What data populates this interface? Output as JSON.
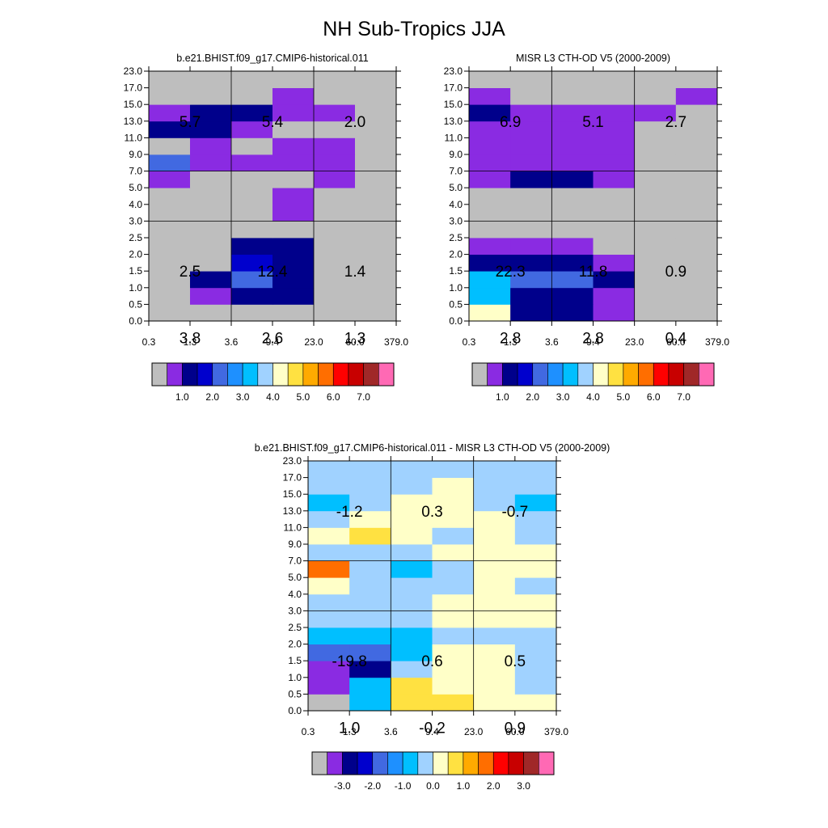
{
  "title": "NH Sub-Tropics JJA",
  "palette": [
    "#bebebe",
    "#8a2be2",
    "#00008b",
    "#0000cd",
    "#4169e1",
    "#1e90ff",
    "#00bfff",
    "#a0d2ff",
    "#ffffc8",
    "#ffe141",
    "#ffaa00",
    "#ff6e00",
    "#ff0000",
    "#c80000",
    "#a02828",
    "#ff69b4"
  ],
  "chart_data": [
    {
      "type": "heatmap",
      "title": "b.e21.BHIST.f09_g17.CMIP6-historical.011",
      "x_edges": [
        "0.3",
        "1.3",
        "3.6",
        "9.4",
        "23.0",
        "60.0",
        "379.0"
      ],
      "y_edges": [
        "0.0",
        "0.5",
        "1.0",
        "1.5",
        "2.0",
        "2.5",
        "3.0",
        "4.0",
        "5.0",
        "7.0",
        "9.0",
        "11.0",
        "13.0",
        "15.0",
        "17.0",
        "23.0"
      ],
      "cells_bottom_to_top": [
        [
          0,
          0,
          0,
          0,
          0,
          0
        ],
        [
          0,
          1,
          2,
          2,
          0,
          0
        ],
        [
          0,
          2,
          4,
          2,
          0,
          0
        ],
        [
          0,
          0,
          3,
          2,
          0,
          0
        ],
        [
          0,
          0,
          2,
          2,
          0,
          0
        ],
        [
          0,
          0,
          0,
          0,
          0,
          0
        ],
        [
          0,
          0,
          0,
          1,
          0,
          0
        ],
        [
          0,
          0,
          0,
          1,
          0,
          0
        ],
        [
          1,
          0,
          0,
          0,
          1,
          0
        ],
        [
          4,
          1,
          1,
          1,
          1,
          0
        ],
        [
          0,
          1,
          0,
          1,
          1,
          0
        ],
        [
          2,
          2,
          1,
          0,
          0,
          0
        ],
        [
          1,
          2,
          2,
          1,
          1,
          0
        ],
        [
          0,
          0,
          0,
          1,
          0,
          0
        ],
        [
          0,
          0,
          0,
          0,
          0,
          0
        ]
      ],
      "group_x_edges": [
        "0.3",
        "3.6",
        "23.0",
        "379.0"
      ],
      "group_y_edges": [
        "0.0",
        "3.0",
        "7.0",
        "23.0"
      ],
      "annotations": [
        {
          "x": "1.3",
          "y": "1.5",
          "text": "2.5"
        },
        {
          "x": "9.4",
          "y": "1.5",
          "text": "12.4"
        },
        {
          "x": "60.0",
          "y": "1.5",
          "text": "1.4"
        },
        {
          "x": "1.3",
          "y": "4.5",
          "text": "3.8"
        },
        {
          "x": "9.4",
          "y": "4.5",
          "text": "2.6"
        },
        {
          "x": "60.0",
          "y": "4.5",
          "text": "1.3"
        },
        {
          "x": "1.3",
          "y": "13.0",
          "text": "5.7"
        },
        {
          "x": "9.4",
          "y": "13.0",
          "text": "5.4"
        },
        {
          "x": "60.0",
          "y": "13.0",
          "text": "2.0"
        }
      ],
      "colorbar_labels": [
        "1.0",
        "2.0",
        "3.0",
        "4.0",
        "5.0",
        "6.0",
        "7.0"
      ]
    },
    {
      "type": "heatmap",
      "title": "MISR L3 CTH-OD V5 (2000-2009)",
      "x_edges": [
        "0.3",
        "1.3",
        "3.6",
        "9.4",
        "23.0",
        "60.0",
        "379.0"
      ],
      "y_edges": [
        "0.0",
        "0.5",
        "1.0",
        "1.5",
        "2.0",
        "2.5",
        "3.0",
        "4.0",
        "5.0",
        "7.0",
        "9.0",
        "11.0",
        "13.0",
        "15.0",
        "17.0",
        "23.0"
      ],
      "cells_bottom_to_top": [
        [
          8,
          2,
          2,
          1,
          0,
          0
        ],
        [
          6,
          2,
          2,
          1,
          0,
          0
        ],
        [
          6,
          4,
          4,
          2,
          0,
          0
        ],
        [
          2,
          2,
          2,
          1,
          0,
          0
        ],
        [
          1,
          1,
          1,
          0,
          0,
          0
        ],
        [
          0,
          0,
          0,
          0,
          0,
          0
        ],
        [
          0,
          0,
          0,
          0,
          0,
          0
        ],
        [
          0,
          0,
          0,
          0,
          0,
          0
        ],
        [
          1,
          2,
          2,
          1,
          0,
          0
        ],
        [
          1,
          1,
          1,
          1,
          0,
          0
        ],
        [
          1,
          1,
          1,
          1,
          0,
          0
        ],
        [
          1,
          1,
          1,
          1,
          0,
          0
        ],
        [
          2,
          1,
          1,
          1,
          1,
          0
        ],
        [
          1,
          0,
          0,
          0,
          0,
          1
        ],
        [
          0,
          0,
          0,
          0,
          0,
          0
        ]
      ],
      "group_x_edges": [
        "0.3",
        "3.6",
        "23.0",
        "379.0"
      ],
      "group_y_edges": [
        "0.0",
        "3.0",
        "7.0",
        "23.0"
      ],
      "annotations": [
        {
          "x": "1.3",
          "y": "1.5",
          "text": "22.3"
        },
        {
          "x": "9.4",
          "y": "1.5",
          "text": "11.8"
        },
        {
          "x": "60.0",
          "y": "1.5",
          "text": "0.9"
        },
        {
          "x": "1.3",
          "y": "4.5",
          "text": "2.8"
        },
        {
          "x": "9.4",
          "y": "4.5",
          "text": "2.8"
        },
        {
          "x": "60.0",
          "y": "4.5",
          "text": "0.4"
        },
        {
          "x": "1.3",
          "y": "13.0",
          "text": "6.9"
        },
        {
          "x": "9.4",
          "y": "13.0",
          "text": "5.1"
        },
        {
          "x": "60.0",
          "y": "13.0",
          "text": "2.7"
        }
      ],
      "colorbar_labels": [
        "1.0",
        "2.0",
        "3.0",
        "4.0",
        "5.0",
        "6.0",
        "7.0"
      ]
    },
    {
      "type": "heatmap",
      "title": "b.e21.BHIST.f09_g17.CMIP6-historical.011 - MISR L3 CTH-OD V5 (2000-2009)",
      "x_edges": [
        "0.3",
        "1.3",
        "3.6",
        "9.4",
        "23.0",
        "60.0",
        "379.0"
      ],
      "y_edges": [
        "0.0",
        "0.5",
        "1.0",
        "1.5",
        "2.0",
        "2.5",
        "3.0",
        "4.0",
        "5.0",
        "7.0",
        "9.0",
        "11.0",
        "13.0",
        "15.0",
        "17.0",
        "23.0"
      ],
      "cells_bottom_to_top": [
        [
          0,
          6,
          9,
          9,
          8,
          8
        ],
        [
          1,
          6,
          9,
          8,
          8,
          7
        ],
        [
          1,
          2,
          7,
          8,
          8,
          7
        ],
        [
          4,
          4,
          6,
          8,
          8,
          7
        ],
        [
          6,
          6,
          6,
          7,
          7,
          7
        ],
        [
          7,
          7,
          7,
          8,
          8,
          8
        ],
        [
          7,
          7,
          7,
          8,
          8,
          8
        ],
        [
          8,
          7,
          7,
          7,
          8,
          7
        ],
        [
          11,
          7,
          6,
          7,
          8,
          8
        ],
        [
          7,
          7,
          7,
          8,
          8,
          8
        ],
        [
          8,
          9,
          8,
          7,
          8,
          7
        ],
        [
          7,
          8,
          8,
          8,
          8,
          7
        ],
        [
          6,
          7,
          8,
          8,
          7,
          6
        ],
        [
          7,
          7,
          7,
          8,
          7,
          7
        ],
        [
          7,
          7,
          7,
          7,
          7,
          7
        ]
      ],
      "group_x_edges": [
        "0.3",
        "3.6",
        "23.0",
        "379.0"
      ],
      "group_y_edges": [
        "0.0",
        "3.0",
        "7.0",
        "23.0"
      ],
      "annotations": [
        {
          "x": "1.3",
          "y": "1.5",
          "text": "-19.8"
        },
        {
          "x": "9.4",
          "y": "1.5",
          "text": "0.6"
        },
        {
          "x": "60.0",
          "y": "1.5",
          "text": "0.5"
        },
        {
          "x": "1.3",
          "y": "4.5",
          "text": "1.0"
        },
        {
          "x": "9.4",
          "y": "4.5",
          "text": "-0.2"
        },
        {
          "x": "60.0",
          "y": "4.5",
          "text": "0.9"
        },
        {
          "x": "1.3",
          "y": "13.0",
          "text": "-1.2"
        },
        {
          "x": "9.4",
          "y": "13.0",
          "text": "0.3"
        },
        {
          "x": "60.0",
          "y": "13.0",
          "text": "-0.7"
        }
      ],
      "colorbar_labels": [
        "-3.0",
        "-2.0",
        "-1.0",
        "0.0",
        "1.0",
        "2.0",
        "3.0"
      ]
    }
  ]
}
